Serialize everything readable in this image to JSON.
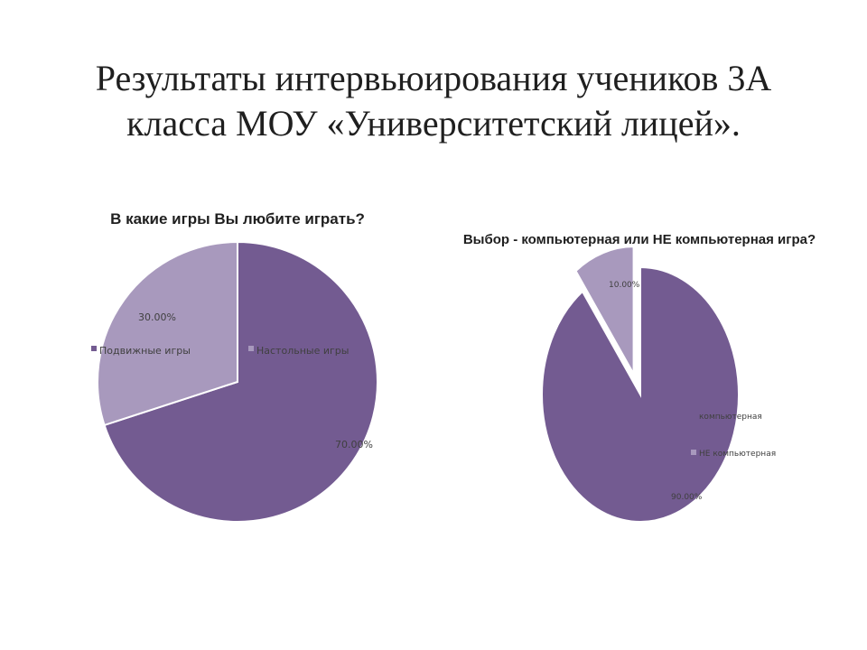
{
  "slide": {
    "title_line1": "Результаты интервьюирования учеников 3А",
    "title_line2": "класса МОУ «Университетский лицей»."
  },
  "chart_data": [
    {
      "type": "pie",
      "title": "В какие игры Вы любите играть?",
      "categories": [
        "Подвижные игры",
        "Настольные игры"
      ],
      "values": [
        70,
        30
      ],
      "data_labels": [
        "70.00%",
        "30.00%"
      ],
      "colors": [
        "#735b91",
        "#a899bd"
      ],
      "legend_position": "center"
    },
    {
      "type": "pie",
      "title": "Выбор - компьютерная или НЕ компьютерная игра?",
      "categories": [
        "компьютерная",
        "НЕ компьютерная"
      ],
      "values": [
        90,
        10
      ],
      "data_labels": [
        "90.00%",
        "10.00%"
      ],
      "colors": [
        "#735b91",
        "#a899bd"
      ],
      "exploded": "НЕ компьютерная",
      "legend_position": "right"
    }
  ]
}
